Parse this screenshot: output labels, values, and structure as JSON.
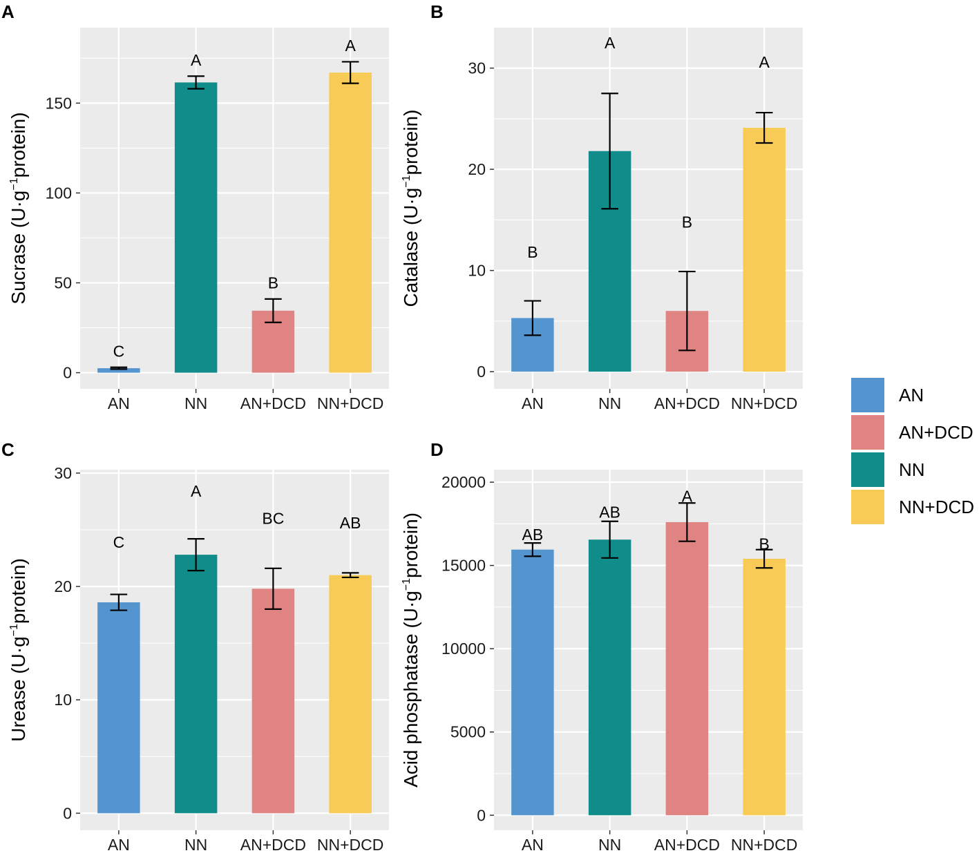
{
  "colors": {
    "AN": "#5595CF",
    "AN+DCD": "#E08383",
    "NN": "#108C8A",
    "NN+DCD": "#F7CB55",
    "panel_bg": "#EBEBEB",
    "grid": "#FFFFFF"
  },
  "legend": {
    "entries": [
      {
        "label": "AN",
        "key": "AN"
      },
      {
        "label": "AN+DCD",
        "key": "AN+DCD"
      },
      {
        "label": "NN",
        "key": "NN"
      },
      {
        "label": "NN+DCD",
        "key": "NN+DCD"
      }
    ]
  },
  "chart_data": [
    {
      "panel": "A",
      "type": "bar",
      "categories": [
        "AN",
        "NN",
        "AN+DCD",
        "NN+DCD"
      ],
      "values": [
        2.5,
        161.5,
        34.5,
        167
      ],
      "errors": [
        0.5,
        3.5,
        6.5,
        6
      ],
      "significance": [
        "C",
        "A",
        "B",
        "A"
      ],
      "sig_y": [
        12,
        174,
        50,
        182
      ],
      "ylabel_main": "Sucrase  (U·g",
      "ylabel_sup": "−1",
      "ylabel_end": "protein)",
      "ylim": [
        -9,
        192
      ],
      "yticks": [
        0,
        50,
        100,
        150
      ],
      "ytick_labels": [
        "0",
        "50",
        "100",
        "150"
      ],
      "grid": true
    },
    {
      "panel": "B",
      "type": "bar",
      "categories": [
        "AN",
        "NN",
        "AN+DCD",
        "NN+DCD"
      ],
      "values": [
        5.3,
        21.8,
        6,
        24.1
      ],
      "errors": [
        1.7,
        5.7,
        3.9,
        1.5
      ],
      "significance": [
        "B",
        "A",
        "B",
        "A"
      ],
      "sig_y": [
        11.8,
        32.5,
        14.8,
        30.6
      ],
      "ylabel_main": "Catalase (U·g",
      "ylabel_sup": "−1",
      "ylabel_end": "protein)",
      "ylim": [
        -1.7,
        34
      ],
      "yticks": [
        0,
        10,
        20,
        30
      ],
      "ytick_labels": [
        "0",
        "10",
        "20",
        "30"
      ],
      "grid": true
    },
    {
      "panel": "C",
      "type": "bar",
      "categories": [
        "AN",
        "NN",
        "AN+DCD",
        "NN+DCD"
      ],
      "values": [
        18.6,
        22.8,
        19.8,
        21
      ],
      "errors": [
        0.7,
        1.4,
        1.8,
        0.2
      ],
      "significance": [
        "C",
        "A",
        "BC",
        "AB"
      ],
      "sig_y": [
        23.9,
        28.4,
        26,
        25.6
      ],
      "ylabel_main": "Urease (U·g",
      "ylabel_sup": "−1",
      "ylabel_end": "protein)",
      "ylim": [
        -1.5,
        30.3
      ],
      "yticks": [
        0,
        10,
        20,
        30
      ],
      "ytick_labels": [
        "0",
        "10",
        "20",
        "30"
      ],
      "grid": true
    },
    {
      "panel": "D",
      "type": "bar",
      "categories": [
        "AN",
        "NN",
        "AN+DCD",
        "NN+DCD"
      ],
      "values": [
        15950,
        16550,
        17600,
        15400
      ],
      "errors": [
        400,
        1100,
        1150,
        550
      ],
      "significance": [
        "AB",
        "AB",
        "A",
        "B"
      ],
      "sig_y": [
        16850,
        18200,
        19160,
        16300
      ],
      "ylabel_main": "Acid phosphatase (U·g",
      "ylabel_sup": "−1",
      "ylabel_end": "protein)",
      "ylim": [
        -900,
        20750
      ],
      "yticks": [
        0,
        5000,
        10000,
        15000,
        20000
      ],
      "ytick_labels": [
        "0",
        "5000",
        "10000",
        "15000",
        "20000"
      ],
      "grid": true
    }
  ]
}
